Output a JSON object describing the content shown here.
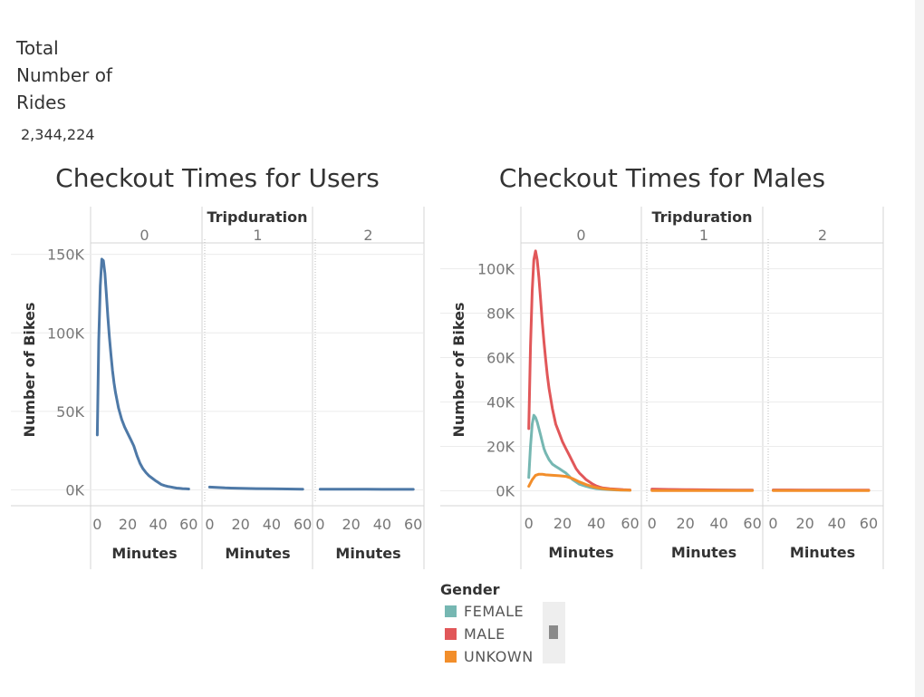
{
  "kpi": {
    "title": "Total Number of Rides",
    "value": "2,344,224"
  },
  "chart_data": [
    {
      "type": "line",
      "title": "Checkout Times for Users",
      "column_header": "Tripduration",
      "panels": [
        "0",
        "1",
        "2"
      ],
      "xlabel": "Minutes",
      "ylabel": "Number of Bikes",
      "x_ticks": [
        0,
        20,
        40,
        60
      ],
      "x_tick_labels": [
        "0",
        "20",
        "40",
        "60"
      ],
      "y_ticks": [
        0,
        50000,
        100000,
        150000
      ],
      "y_tick_labels": [
        "0K",
        "50K",
        "100K",
        "150K"
      ],
      "xlim": [
        -2,
        64
      ],
      "ylim": [
        -2000,
        155000
      ],
      "grid": true,
      "series": [
        {
          "color": "#4e79a7",
          "panel_values": [
            {
              "x": [
                0,
                1,
                2,
                3,
                4,
                5,
                6,
                7,
                8,
                9,
                10,
                11,
                12,
                14,
                16,
                18,
                20,
                22,
                24,
                26,
                28,
                30,
                32,
                34,
                36,
                38,
                40,
                42,
                44,
                46,
                48,
                50,
                52,
                54,
                56,
                58,
                60
              ],
              "y": [
                35000,
                95000,
                130000,
                147000,
                146000,
                138000,
                124000,
                110000,
                97000,
                86000,
                76000,
                68000,
                62000,
                52000,
                45000,
                40000,
                36000,
                32000,
                28000,
                22000,
                17000,
                13500,
                11000,
                9000,
                7500,
                6000,
                4800,
                3500,
                2800,
                2300,
                1900,
                1500,
                1200,
                1000,
                800,
                700,
                600
              ]
            },
            {
              "x": [
                0,
                10,
                20,
                30,
                40,
                50,
                60
              ],
              "y": [
                1800,
                1300,
                1000,
                800,
                700,
                600,
                500
              ]
            },
            {
              "x": [
                0,
                10,
                20,
                30,
                40,
                50,
                60
              ],
              "y": [
                500,
                450,
                420,
                400,
                380,
                360,
                350
              ]
            }
          ]
        }
      ]
    },
    {
      "type": "line",
      "title": "Checkout Times for Males",
      "column_header": "Tripduration",
      "panels": [
        "0",
        "1",
        "2"
      ],
      "xlabel": "Minutes",
      "ylabel": "Number of Bikes",
      "x_ticks": [
        0,
        20,
        40,
        60
      ],
      "x_tick_labels": [
        "0",
        "20",
        "40",
        "60"
      ],
      "y_ticks": [
        0,
        20000,
        40000,
        60000,
        80000,
        100000
      ],
      "y_tick_labels": [
        "0K",
        "20K",
        "40K",
        "60K",
        "80K",
        "100K"
      ],
      "xlim": [
        -2,
        64
      ],
      "ylim": [
        -1000,
        110000
      ],
      "grid": true,
      "series": [
        {
          "name": "FEMALE",
          "color": "#76b7b2",
          "panel_values": [
            {
              "x": [
                0,
                1,
                2,
                3,
                4,
                5,
                6,
                7,
                8,
                9,
                10,
                12,
                14,
                16,
                18,
                20,
                22,
                24,
                26,
                28,
                30,
                32,
                34,
                36,
                38,
                40,
                44,
                48,
                52,
                56,
                60
              ],
              "y": [
                6000,
                20000,
                30000,
                34000,
                33000,
                31000,
                28000,
                25000,
                22000,
                19000,
                17000,
                14000,
                12000,
                11000,
                10000,
                9000,
                8000,
                6500,
                5000,
                4000,
                3000,
                2500,
                2000,
                1600,
                1300,
                1000,
                700,
                500,
                400,
                300,
                250
              ]
            },
            {
              "x": [
                0,
                10,
                20,
                30,
                40,
                50,
                60
              ],
              "y": [
                600,
                500,
                400,
                350,
                300,
                280,
                250
              ]
            },
            {
              "x": [
                0,
                10,
                20,
                30,
                40,
                50,
                60
              ],
              "y": [
                300,
                280,
                260,
                250,
                240,
                230,
                220
              ]
            }
          ]
        },
        {
          "name": "MALE",
          "color": "#e15759",
          "panel_values": [
            {
              "x": [
                0,
                1,
                2,
                3,
                4,
                5,
                6,
                7,
                8,
                9,
                10,
                11,
                12,
                14,
                16,
                18,
                20,
                22,
                24,
                26,
                28,
                30,
                32,
                34,
                36,
                38,
                40,
                42,
                44,
                48,
                52,
                56,
                60
              ],
              "y": [
                28000,
                65000,
                90000,
                104000,
                108000,
                104000,
                96000,
                86000,
                76000,
                67000,
                59000,
                52000,
                46000,
                37000,
                30000,
                26000,
                22000,
                19000,
                16000,
                13000,
                10000,
                8000,
                6500,
                5000,
                4000,
                3000,
                2200,
                1700,
                1300,
                900,
                700,
                500,
                400
              ]
            },
            {
              "x": [
                0,
                10,
                20,
                30,
                40,
                50,
                60
              ],
              "y": [
                800,
                650,
                550,
                450,
                400,
                350,
                300
              ]
            },
            {
              "x": [
                0,
                10,
                20,
                30,
                40,
                50,
                60
              ],
              "y": [
                400,
                380,
                350,
                330,
                320,
                300,
                290
              ]
            }
          ]
        },
        {
          "name": "UNKOWN",
          "color": "#f28e2b",
          "panel_values": [
            {
              "x": [
                0,
                2,
                4,
                6,
                8,
                10,
                14,
                18,
                22,
                26,
                30,
                34,
                38,
                42,
                46,
                50,
                54,
                58,
                60
              ],
              "y": [
                2000,
                5000,
                7000,
                7500,
                7500,
                7200,
                7000,
                6800,
                6500,
                5500,
                4000,
                2800,
                1800,
                1200,
                800,
                600,
                400,
                300,
                250
              ]
            },
            {
              "x": [
                0,
                10,
                20,
                30,
                40,
                50,
                60
              ],
              "y": [
                150,
                130,
                120,
                110,
                100,
                100,
                100
              ]
            },
            {
              "x": [
                0,
                10,
                20,
                30,
                40,
                50,
                60
              ],
              "y": [
                100,
                100,
                90,
                90,
                90,
                90,
                90
              ]
            }
          ]
        }
      ],
      "legend": {
        "title": "Gender",
        "items": [
          {
            "label": "FEMALE",
            "color": "#76b7b2"
          },
          {
            "label": "MALE",
            "color": "#e15759"
          },
          {
            "label": "UNKOWN",
            "color": "#f28e2b"
          }
        ]
      }
    }
  ]
}
